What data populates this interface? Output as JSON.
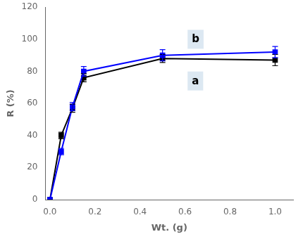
{
  "chart_data": {
    "type": "line",
    "xlabel": "Wt. (g)",
    "ylabel": "R (%)",
    "x": [
      0.0,
      0.05,
      0.1,
      0.15,
      0.5,
      1.0
    ],
    "series": [
      {
        "color": "#000000",
        "marker": "square",
        "values": [
          0.0,
          40.0,
          57.0,
          76.0,
          88.0,
          87.0
        ],
        "yerr": [
          0.0,
          2.0,
          2.5,
          2.5,
          2.5,
          3.5
        ]
      },
      {
        "color": "#0000ff",
        "marker": "square",
        "values": [
          0.0,
          30.0,
          58.0,
          80.0,
          90.0,
          92.0
        ],
        "yerr": [
          0.0,
          2.0,
          2.5,
          3.0,
          3.5,
          3.5
        ]
      }
    ],
    "xlim": [
      -0.02,
      1.08
    ],
    "ylim": [
      0,
      120
    ],
    "xticks": [
      {
        "value": 0,
        "label": "0.0"
      },
      0.2,
      0.4,
      0.6,
      0.8,
      {
        "value": 1,
        "label": "1.0"
      }
    ],
    "yticks": [
      0,
      20,
      40,
      60,
      80,
      100,
      120
    ],
    "grid": false,
    "annotations": [
      {
        "text": "b",
        "x": 0.63,
        "y": 98
      },
      {
        "text": "a",
        "x": 0.63,
        "y": 72
      }
    ]
  }
}
